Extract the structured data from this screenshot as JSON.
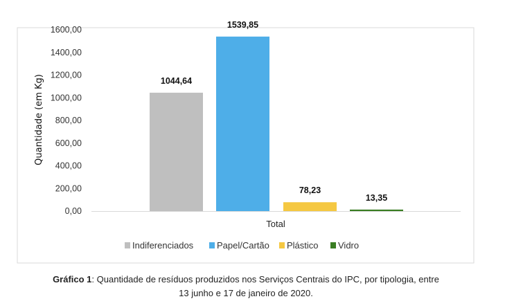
{
  "chart_data": {
    "type": "bar",
    "categories": [
      "Total"
    ],
    "series": [
      {
        "name": "Indiferenciados",
        "values": [
          1044.64
        ],
        "label": "1044,64",
        "color": "#bfbfbf"
      },
      {
        "name": "Papel/Cartão",
        "values": [
          1539.85
        ],
        "label": "1539,85",
        "color": "#4eaee8"
      },
      {
        "name": "Plástico",
        "values": [
          78.23
        ],
        "label": "78,23",
        "color": "#f5c842"
      },
      {
        "name": "Vidro",
        "values": [
          13.35
        ],
        "label": "13,35",
        "color": "#3a7d23"
      }
    ],
    "title": "",
    "xlabel": "Total",
    "ylabel": "Quantidade (em Kg)",
    "ylim": [
      0,
      1600
    ],
    "yticks": [
      "0,00",
      "200,00",
      "400,00",
      "600,00",
      "800,00",
      "1000,00",
      "1200,00",
      "1400,00",
      "1600,00"
    ],
    "grid": false,
    "legend": "bottom"
  },
  "caption": {
    "label": "Gráfico 1",
    "text": ": Quantidade de resíduos produzidos nos Serviços Centrais do IPC, por tipologia, entre",
    "line2": "13 junho e 17 de janeiro de 2020."
  }
}
